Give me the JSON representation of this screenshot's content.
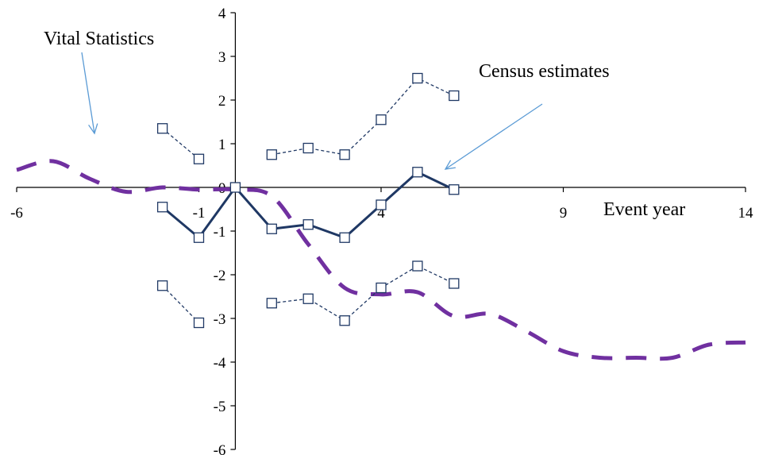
{
  "chart_data": {
    "type": "line",
    "title": "",
    "xlabel": "Event year",
    "ylabel": "",
    "xlim": [
      -6,
      14
    ],
    "ylim": [
      -6,
      4
    ],
    "x_ticks": [
      -6,
      -1,
      4,
      9,
      14
    ],
    "y_ticks": [
      4,
      3,
      2,
      1,
      0,
      -1,
      -2,
      -3,
      -4,
      -5,
      -6
    ],
    "x_tick_labels": [
      "-6",
      "-1",
      "4",
      "9",
      "14"
    ],
    "y_tick_labels": [
      "4",
      "3",
      "2",
      "1",
      "0",
      "-1",
      "-2",
      "-3",
      "-4",
      "-5",
      "-6"
    ],
    "grid": false,
    "series": [
      {
        "name": "Vital Statistics",
        "style": "dashed",
        "color": "#7030A0",
        "x": [
          -6,
          -5,
          -4,
          -3,
          -2,
          -1,
          0,
          1,
          2,
          3,
          4,
          5,
          6,
          7,
          8,
          9,
          10,
          11,
          12,
          13,
          14
        ],
        "values": [
          0.4,
          0.6,
          0.2,
          -0.1,
          0.0,
          -0.05,
          -0.05,
          -0.2,
          -1.3,
          -2.3,
          -2.45,
          -2.4,
          -2.95,
          -2.9,
          -3.3,
          -3.75,
          -3.9,
          -3.9,
          -3.9,
          -3.6,
          -3.55
        ]
      },
      {
        "name": "Census estimates",
        "style": "solid",
        "color": "#1F3864",
        "segments": [
          {
            "x": [
              -2,
              -1,
              0,
              1,
              2,
              3,
              4,
              5,
              6
            ],
            "values": [
              -0.45,
              -1.15,
              0.0,
              -0.95,
              -0.85,
              -1.15,
              -0.4,
              0.35,
              -0.05
            ]
          }
        ]
      },
      {
        "name": "",
        "style": "dotted-markers",
        "color": "#1F3864",
        "marker": "open-square",
        "segments": [
          {
            "x": [
              -2,
              -1
            ],
            "values": [
              1.35,
              0.65
            ]
          },
          {
            "x": [
              1,
              2,
              3,
              4,
              5,
              6
            ],
            "values": [
              0.75,
              0.9,
              0.75,
              1.55,
              2.5,
              2.1
            ]
          }
        ]
      },
      {
        "name": "",
        "style": "dotted-markers",
        "color": "#1F3864",
        "marker": "open-square",
        "segments": [
          {
            "x": [
              -2,
              -1
            ],
            "values": [
              -2.25,
              -3.1
            ]
          },
          {
            "x": [
              1,
              2,
              3,
              4,
              5,
              6
            ],
            "values": [
              -2.65,
              -2.55,
              -3.05,
              -2.3,
              -1.8,
              -2.2
            ]
          }
        ]
      }
    ],
    "annotations": [
      {
        "text": "Vital Statistics",
        "points_to": "Vital Statistics series",
        "arrow_color": "#5B9BD5"
      },
      {
        "text": "Census estimates",
        "points_to": "Census estimates series",
        "arrow_color": "#5B9BD5"
      }
    ]
  }
}
